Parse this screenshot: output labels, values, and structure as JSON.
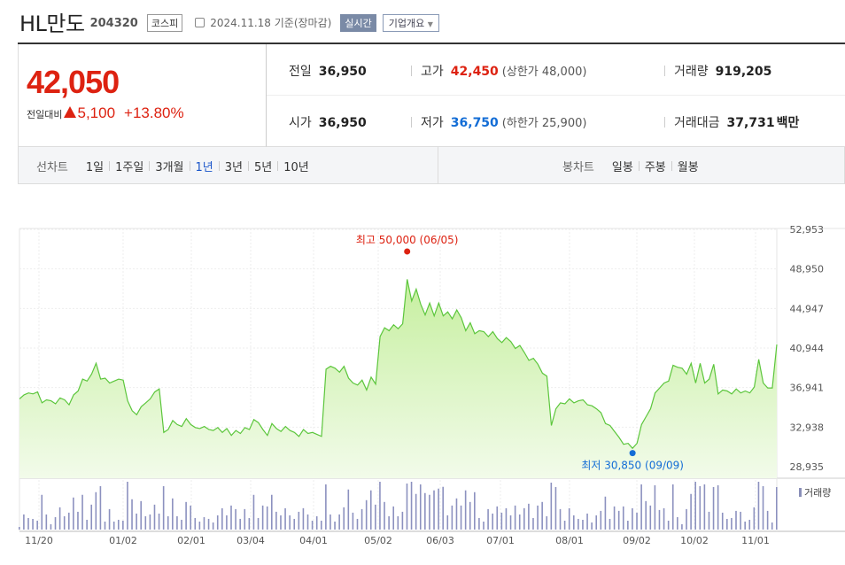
{
  "header": {
    "stock_name": "HL만도",
    "stock_code": "204320",
    "market": "코스피",
    "date_info": "2024.11.18 기준(장마감)",
    "realtime_button": "실시간",
    "company_button": "기업개요"
  },
  "quote": {
    "price": "42,050",
    "change_label": "전일대비",
    "change_value": "5,100",
    "change_percent": "+13.80%",
    "prev_close_label": "전일",
    "prev_close": "36,950",
    "high_label": "고가",
    "high": "42,450",
    "upper_limit": "(상한가 48,000)",
    "volume_label": "거래량",
    "volume": "919,205",
    "open_label": "시가",
    "open": "36,950",
    "low_label": "저가",
    "low": "36,750",
    "lower_limit": "(하한가 25,900)",
    "amount_label": "거래대금",
    "amount": "37,731",
    "amount_unit": "백만"
  },
  "tabs": {
    "line_chart_title": "선차트",
    "periods": [
      "1일",
      "1주일",
      "3개월",
      "1년",
      "3년",
      "5년",
      "10년"
    ],
    "active_period": "1년",
    "candle_chart_title": "봉차트",
    "candle_periods": [
      "일봉",
      "주봉",
      "월봉"
    ]
  },
  "colors": {
    "up": "#dd2211",
    "down": "#136dd6",
    "line": "#5cc63c",
    "fill_top": "#c6ef9f",
    "fill_bottom": "#f2fbea"
  },
  "chart_data": {
    "type": "area",
    "y_ticks": [
      "52,953",
      "48,950",
      "44,947",
      "40,944",
      "36,941",
      "32,938",
      "28,935"
    ],
    "ylim": [
      28935,
      52953
    ],
    "x_labels": [
      "11/20",
      "01/02",
      "02/01",
      "03/04",
      "04/01",
      "05/02",
      "06/03",
      "07/01",
      "08/01",
      "09/02",
      "10/02",
      "11/01"
    ],
    "max_annotation": "최고 50,000 (06/05)",
    "min_annotation": "최저 30,850 (09/09)",
    "max": {
      "x": "06/05",
      "y": 50000
    },
    "min": {
      "x": "09/09",
      "y": 30850
    },
    "volume_label": "거래량",
    "series": [
      {
        "values": [
          35800,
          36200,
          36400,
          36300,
          36500,
          35400,
          35700,
          35600,
          35300,
          35900,
          35700,
          35200,
          36200,
          36600,
          37800,
          37600,
          38300,
          39400,
          37800,
          37900,
          37400,
          37600,
          37800,
          37700,
          35600,
          34600,
          34200,
          35000,
          35400,
          35800,
          36500,
          36800,
          32400,
          32700,
          33600,
          33200,
          33000,
          33800,
          33200,
          32900,
          32800,
          33000,
          32700,
          32600,
          32900,
          32400,
          32800,
          32100,
          32600,
          32300,
          32900,
          32700,
          33700,
          33400,
          32700,
          32100,
          33300,
          32800,
          32500,
          33000,
          32600,
          32400,
          32000,
          32700,
          32300,
          32400,
          32200,
          32000,
          38800,
          39100,
          38900,
          38500,
          39100,
          37900,
          37400,
          37200,
          37700,
          36700,
          38000,
          37300,
          42100,
          43000,
          42700,
          43300,
          42900,
          43400,
          47900,
          45700,
          46900,
          45400,
          44300,
          45500,
          44200,
          45500,
          44200,
          44600,
          43900,
          44800,
          44000,
          42700,
          43500,
          42400,
          42700,
          42600,
          42100,
          42600,
          41900,
          41500,
          42000,
          41600,
          40900,
          41200,
          40500,
          39700,
          39900,
          39300,
          38400,
          38100,
          33100,
          34800,
          35400,
          35300,
          35800,
          35400,
          35600,
          35700,
          35200,
          35100,
          34800,
          34400,
          33300,
          33100,
          32500,
          31900,
          31200,
          31300,
          30800,
          31300,
          33200,
          34000,
          34800,
          36400,
          36900,
          37400,
          37600,
          39200,
          39000,
          38900,
          38300,
          39400,
          37400,
          39400,
          37400,
          37800,
          39300,
          36300,
          36700,
          36600,
          36300,
          36800,
          36400,
          36600,
          36400,
          37000,
          39800,
          37400,
          36900,
          36900,
          41300
        ]
      }
    ]
  }
}
